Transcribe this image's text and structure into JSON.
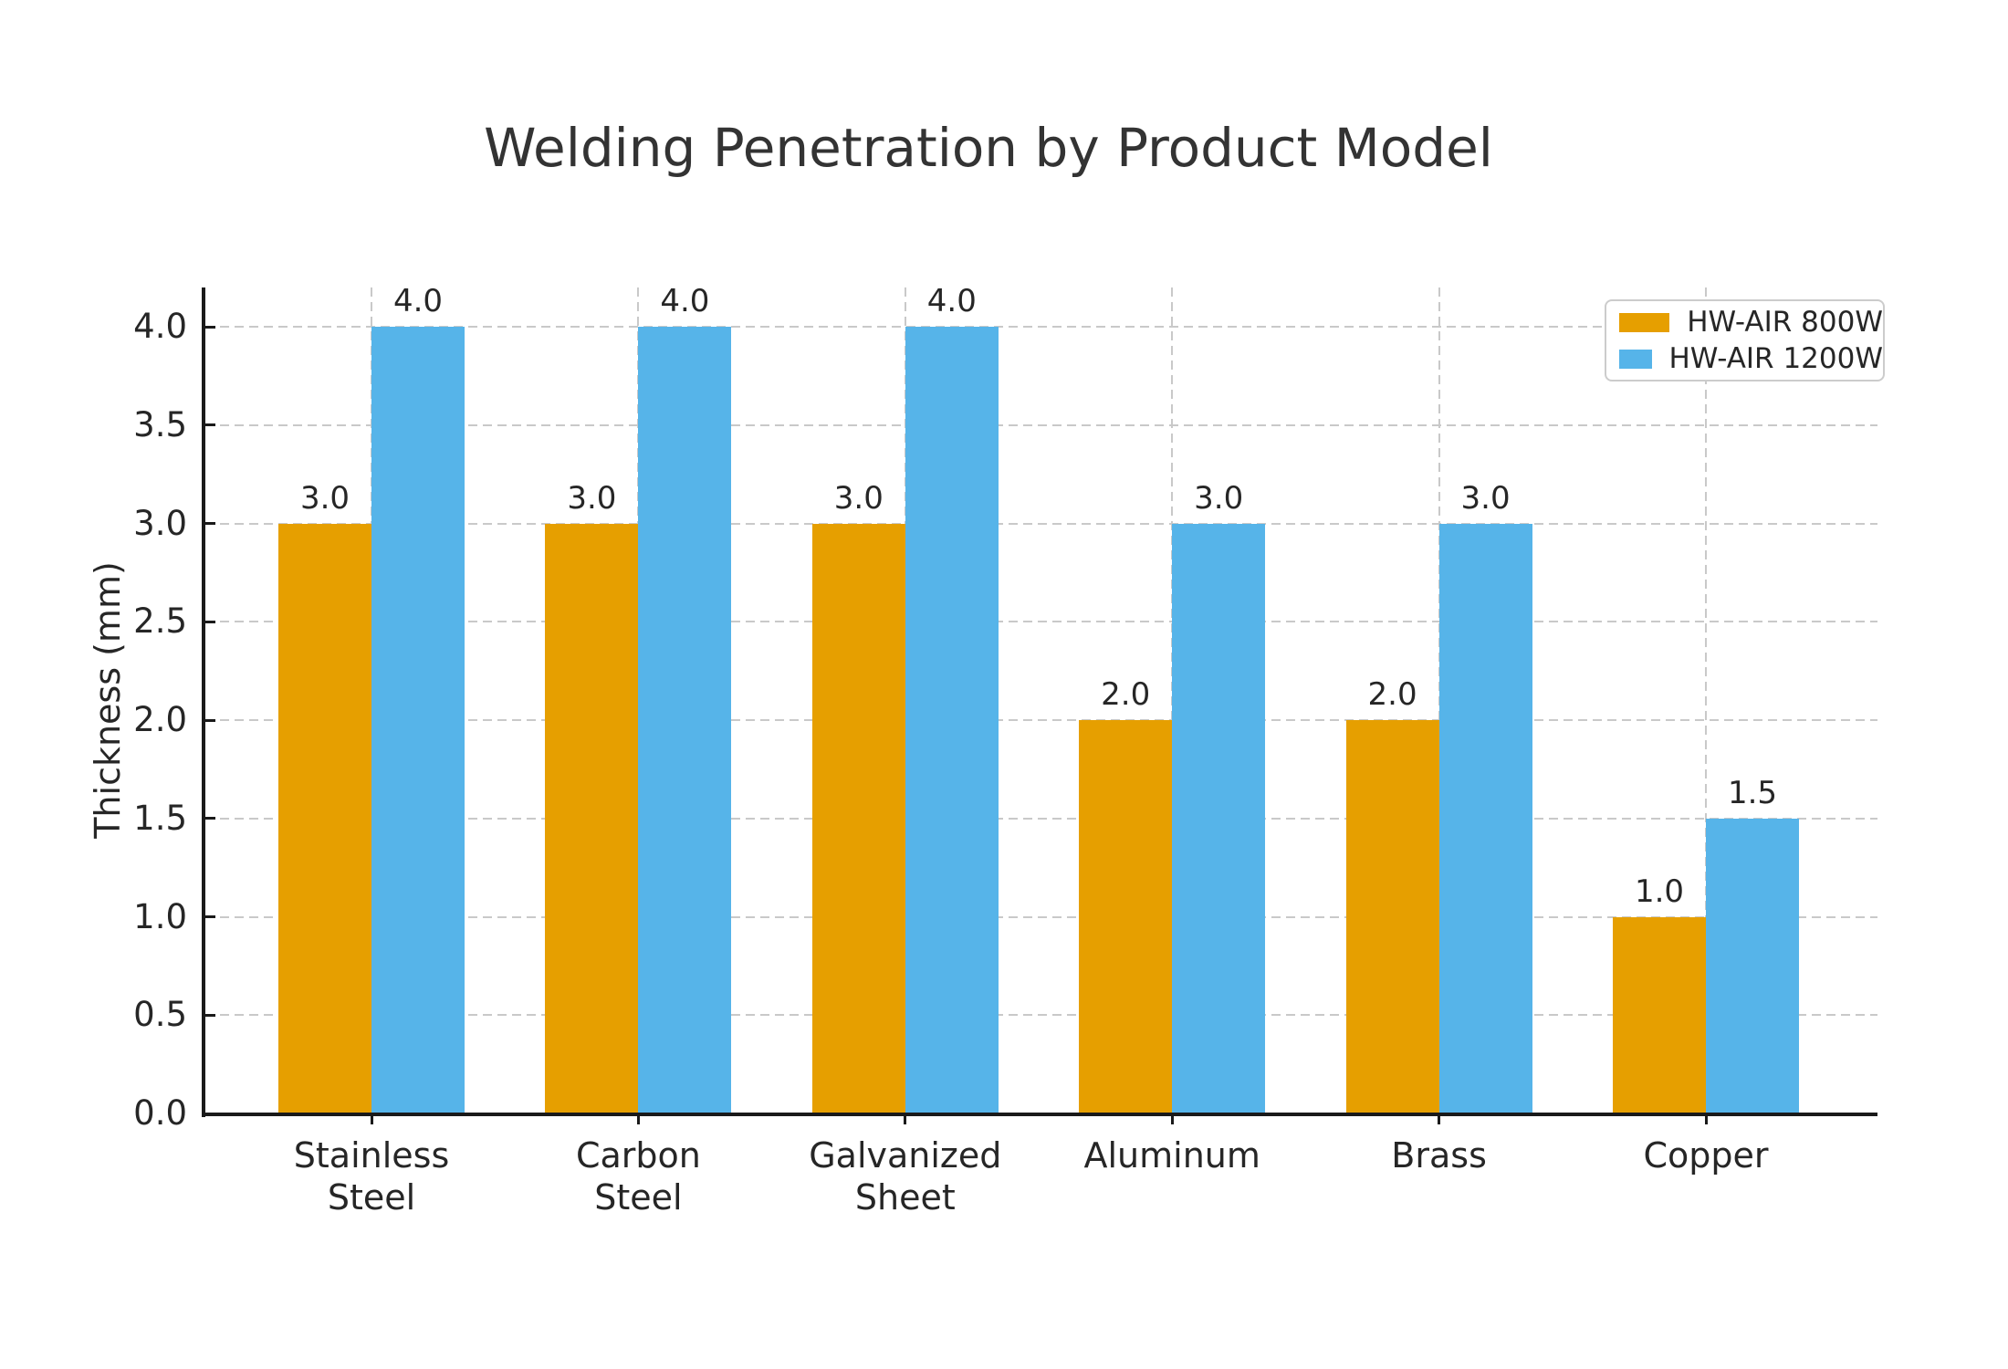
{
  "chart_data": {
    "type": "bar",
    "title": "Welding Penetration by Product Model",
    "ylabel": "Thickness (mm)",
    "xlabel": "",
    "categories": [
      "Stainless\nSteel",
      "Carbon\nSteel",
      "Galvanized\nSheet",
      "Aluminum",
      "Brass",
      "Copper"
    ],
    "series": [
      {
        "name": "HW-AIR 800W",
        "color": "#E69F00",
        "values": [
          3.0,
          3.0,
          3.0,
          2.0,
          2.0,
          1.0
        ],
        "value_labels": [
          "3.0",
          "3.0",
          "3.0",
          "2.0",
          "2.0",
          "1.0"
        ]
      },
      {
        "name": "HW-AIR 1200W",
        "color": "#56B4E9",
        "values": [
          4.0,
          4.0,
          4.0,
          3.0,
          3.0,
          1.5
        ],
        "value_labels": [
          "4.0",
          "4.0",
          "4.0",
          "3.0",
          "3.0",
          "1.5"
        ]
      }
    ],
    "yticks": [
      {
        "v": 0.0,
        "label": "0.0"
      },
      {
        "v": 0.5,
        "label": "0.5"
      },
      {
        "v": 1.0,
        "label": "1.0"
      },
      {
        "v": 1.5,
        "label": "1.5"
      },
      {
        "v": 2.0,
        "label": "2.0"
      },
      {
        "v": 2.5,
        "label": "2.5"
      },
      {
        "v": 3.0,
        "label": "3.0"
      },
      {
        "v": 3.5,
        "label": "3.5"
      },
      {
        "v": 4.0,
        "label": "4.0"
      }
    ],
    "ylim": [
      0,
      4.2
    ],
    "grid": "dashed, horizontal and vertical",
    "legend_position": "upper right",
    "colors": {
      "series_800w": "#E69F00",
      "series_1200w": "#56B4E9",
      "grid": "#c9c9c9",
      "spine": "#1a1a1a",
      "text": "#262626",
      "title": "#333333"
    }
  }
}
